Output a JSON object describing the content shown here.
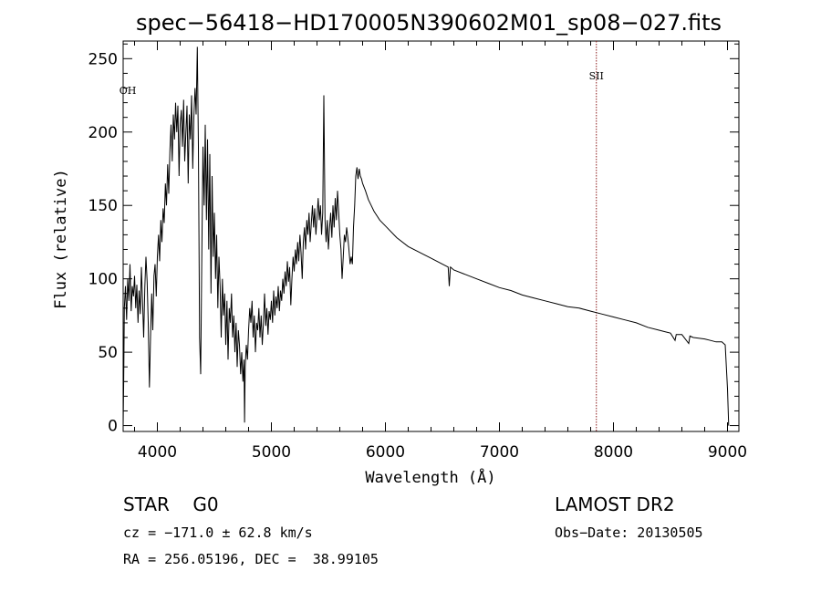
{
  "chart_data": {
    "type": "line",
    "title": "spec−56418−HD170005N390602M01_sp08−027.fits",
    "xlabel": "Wavelength (Å)",
    "ylabel": "Flux (relative)",
    "xlim": [
      3700,
      9100
    ],
    "ylim": [
      -4,
      262
    ],
    "x_ticks": [
      4000,
      5000,
      6000,
      7000,
      8000,
      9000
    ],
    "y_ticks": [
      0,
      50,
      100,
      150,
      200,
      250
    ],
    "grid": false,
    "series": [
      {
        "color": "#000000",
        "points": [
          [
            3700,
            0
          ],
          [
            3705,
            30
          ],
          [
            3710,
            80
          ],
          [
            3720,
            95
          ],
          [
            3730,
            72
          ],
          [
            3740,
            100
          ],
          [
            3750,
            85
          ],
          [
            3760,
            110
          ],
          [
            3770,
            78
          ],
          [
            3780,
            95
          ],
          [
            3790,
            88
          ],
          [
            3800,
            102
          ],
          [
            3810,
            80
          ],
          [
            3820,
            96
          ],
          [
            3830,
            70
          ],
          [
            3840,
            92
          ],
          [
            3850,
            76
          ],
          [
            3860,
            108
          ],
          [
            3870,
            84
          ],
          [
            3880,
            60
          ],
          [
            3890,
            95
          ],
          [
            3900,
            115
          ],
          [
            3910,
            98
          ],
          [
            3920,
            70
          ],
          [
            3930,
            26
          ],
          [
            3940,
            60
          ],
          [
            3950,
            90
          ],
          [
            3960,
            65
          ],
          [
            3970,
            102
          ],
          [
            3980,
            110
          ],
          [
            3990,
            88
          ],
          [
            4000,
            115
          ],
          [
            4010,
            130
          ],
          [
            4020,
            112
          ],
          [
            4030,
            140
          ],
          [
            4040,
            125
          ],
          [
            4050,
            148
          ],
          [
            4060,
            138
          ],
          [
            4070,
            165
          ],
          [
            4080,
            150
          ],
          [
            4090,
            178
          ],
          [
            4100,
            158
          ],
          [
            4110,
            188
          ],
          [
            4120,
            205
          ],
          [
            4130,
            180
          ],
          [
            4140,
            212
          ],
          [
            4150,
            195
          ],
          [
            4160,
            220
          ],
          [
            4170,
            200
          ],
          [
            4180,
            218
          ],
          [
            4190,
            170
          ],
          [
            4200,
            205
          ],
          [
            4210,
            215
          ],
          [
            4220,
            190
          ],
          [
            4230,
            222
          ],
          [
            4240,
            180
          ],
          [
            4250,
            200
          ],
          [
            4260,
            218
          ],
          [
            4270,
            165
          ],
          [
            4280,
            212
          ],
          [
            4290,
            195
          ],
          [
            4300,
            225
          ],
          [
            4310,
            175
          ],
          [
            4320,
            210
          ],
          [
            4330,
            230
          ],
          [
            4340,
            212
          ],
          [
            4350,
            258
          ],
          [
            4360,
            190
          ],
          [
            4370,
            60
          ],
          [
            4380,
            35
          ],
          [
            4390,
            120
          ],
          [
            4400,
            190
          ],
          [
            4410,
            150
          ],
          [
            4420,
            205
          ],
          [
            4430,
            140
          ],
          [
            4440,
            195
          ],
          [
            4450,
            120
          ],
          [
            4460,
            185
          ],
          [
            4470,
            90
          ],
          [
            4480,
            170
          ],
          [
            4490,
            115
          ],
          [
            4500,
            145
          ],
          [
            4510,
            100
          ],
          [
            4520,
            130
          ],
          [
            4530,
            80
          ],
          [
            4540,
            115
          ],
          [
            4550,
            95
          ],
          [
            4560,
            60
          ],
          [
            4570,
            100
          ],
          [
            4580,
            75
          ],
          [
            4590,
            90
          ],
          [
            4600,
            55
          ],
          [
            4610,
            85
          ],
          [
            4620,
            45
          ],
          [
            4630,
            80
          ],
          [
            4640,
            70
          ],
          [
            4650,
            90
          ],
          [
            4660,
            60
          ],
          [
            4670,
            75
          ],
          [
            4680,
            50
          ],
          [
            4690,
            70
          ],
          [
            4700,
            40
          ],
          [
            4710,
            65
          ],
          [
            4720,
            55
          ],
          [
            4730,
            35
          ],
          [
            4740,
            50
          ],
          [
            4750,
            30
          ],
          [
            4760,
            45
          ],
          [
            4765,
            2
          ],
          [
            4770,
            40
          ],
          [
            4780,
            55
          ],
          [
            4790,
            45
          ],
          [
            4800,
            65
          ],
          [
            4810,
            80
          ],
          [
            4820,
            70
          ],
          [
            4830,
            85
          ],
          [
            4840,
            60
          ],
          [
            4850,
            75
          ],
          [
            4860,
            50
          ],
          [
            4870,
            70
          ],
          [
            4880,
            65
          ],
          [
            4890,
            80
          ],
          [
            4900,
            60
          ],
          [
            4910,
            75
          ],
          [
            4920,
            55
          ],
          [
            4930,
            70
          ],
          [
            4940,
            90
          ],
          [
            4950,
            68
          ],
          [
            4960,
            80
          ],
          [
            4970,
            62
          ],
          [
            4980,
            78
          ],
          [
            4990,
            72
          ],
          [
            5000,
            85
          ],
          [
            5010,
            70
          ],
          [
            5020,
            92
          ],
          [
            5030,
            75
          ],
          [
            5040,
            88
          ],
          [
            5050,
            80
          ],
          [
            5060,
            95
          ],
          [
            5070,
            78
          ],
          [
            5080,
            92
          ],
          [
            5090,
            85
          ],
          [
            5100,
            100
          ],
          [
            5110,
            90
          ],
          [
            5120,
            105
          ],
          [
            5130,
            95
          ],
          [
            5140,
            112
          ],
          [
            5150,
            98
          ],
          [
            5160,
            108
          ],
          [
            5170,
            82
          ],
          [
            5180,
            100
          ],
          [
            5190,
            115
          ],
          [
            5200,
            105
          ],
          [
            5210,
            120
          ],
          [
            5220,
            110
          ],
          [
            5230,
            125
          ],
          [
            5240,
            112
          ],
          [
            5250,
            130
          ],
          [
            5260,
            118
          ],
          [
            5270,
            100
          ],
          [
            5280,
            125
          ],
          [
            5290,
            135
          ],
          [
            5300,
            120
          ],
          [
            5310,
            140
          ],
          [
            5320,
            130
          ],
          [
            5330,
            145
          ],
          [
            5340,
            125
          ],
          [
            5350,
            138
          ],
          [
            5360,
            150
          ],
          [
            5370,
            135
          ],
          [
            5380,
            148
          ],
          [
            5390,
            130
          ],
          [
            5400,
            142
          ],
          [
            5410,
            155
          ],
          [
            5420,
            140
          ],
          [
            5430,
            150
          ],
          [
            5440,
            130
          ],
          [
            5450,
            145
          ],
          [
            5460,
            225
          ],
          [
            5470,
            140
          ],
          [
            5480,
            125
          ],
          [
            5490,
            140
          ],
          [
            5500,
            120
          ],
          [
            5510,
            135
          ],
          [
            5520,
            145
          ],
          [
            5530,
            128
          ],
          [
            5540,
            150
          ],
          [
            5550,
            135
          ],
          [
            5560,
            155
          ],
          [
            5570,
            140
          ],
          [
            5580,
            160
          ],
          [
            5590,
            145
          ],
          [
            5600,
            130
          ],
          [
            5610,
            120
          ],
          [
            5620,
            100
          ],
          [
            5630,
            115
          ],
          [
            5640,
            130
          ],
          [
            5650,
            125
          ],
          [
            5660,
            135
          ],
          [
            5670,
            128
          ],
          [
            5680,
            120
          ],
          [
            5690,
            110
          ],
          [
            5700,
            115
          ],
          [
            5710,
            110
          ],
          [
            5720,
            135
          ],
          [
            5730,
            150
          ],
          [
            5740,
            170
          ],
          [
            5750,
            176
          ],
          [
            5760,
            168
          ],
          [
            5770,
            175
          ],
          [
            5780,
            170
          ],
          [
            5790,
            168
          ],
          [
            5800,
            165
          ],
          [
            5825,
            160
          ],
          [
            5850,
            154
          ],
          [
            5875,
            150
          ],
          [
            5900,
            146
          ],
          [
            5950,
            140
          ],
          [
            6000,
            136
          ],
          [
            6100,
            128
          ],
          [
            6200,
            122
          ],
          [
            6300,
            118
          ],
          [
            6400,
            114
          ],
          [
            6500,
            110
          ],
          [
            6550,
            108
          ],
          [
            6560,
            95
          ],
          [
            6570,
            108
          ],
          [
            6600,
            106
          ],
          [
            6700,
            103
          ],
          [
            6800,
            100
          ],
          [
            6900,
            97
          ],
          [
            7000,
            94
          ],
          [
            7100,
            92
          ],
          [
            7200,
            89
          ],
          [
            7300,
            87
          ],
          [
            7400,
            85
          ],
          [
            7500,
            83
          ],
          [
            7600,
            81
          ],
          [
            7700,
            80
          ],
          [
            7800,
            78
          ],
          [
            7900,
            76
          ],
          [
            8000,
            74
          ],
          [
            8100,
            72
          ],
          [
            8200,
            70
          ],
          [
            8300,
            67
          ],
          [
            8400,
            65
          ],
          [
            8450,
            64
          ],
          [
            8500,
            63
          ],
          [
            8540,
            58
          ],
          [
            8550,
            62
          ],
          [
            8600,
            62
          ],
          [
            8660,
            56
          ],
          [
            8670,
            61
          ],
          [
            8700,
            60
          ],
          [
            8800,
            59
          ],
          [
            8850,
            58
          ],
          [
            8900,
            57
          ],
          [
            8950,
            57
          ],
          [
            8980,
            55
          ],
          [
            9000,
            25
          ],
          [
            9010,
            0
          ]
        ]
      }
    ],
    "annotations": [
      {
        "label": "OH",
        "x": 3740,
        "y_label": 226,
        "dashed": false
      },
      {
        "label": "SII",
        "x": 7850,
        "y_label": 236,
        "dashed": true,
        "color": "#8b1a1a"
      }
    ]
  },
  "info": {
    "object": "STAR    G0",
    "survey": "LAMOST DR2",
    "cz": "cz = −171.0 ± 62.8 km/s",
    "obs_date": "Obs−Date: 20130505",
    "radec": "RA = 256.05196, DEC =  38.99105"
  }
}
